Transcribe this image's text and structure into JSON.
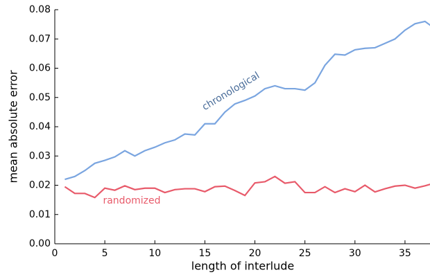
{
  "chart_data": {
    "type": "line",
    "x_label": "length of interlude",
    "y_label": "mean absolute error",
    "x": [
      1,
      2,
      3,
      4,
      5,
      6,
      7,
      8,
      9,
      10,
      11,
      12,
      13,
      14,
      15,
      16,
      17,
      18,
      19,
      20,
      21,
      22,
      23,
      24,
      25,
      26,
      27,
      28,
      29,
      30,
      31,
      32,
      33,
      34,
      35,
      36,
      37,
      38
    ],
    "series": [
      {
        "name": "chronological",
        "color": "#7aa5e0",
        "values": [
          0.022,
          0.023,
          0.025,
          0.0275,
          0.0285,
          0.0297,
          0.0318,
          0.03,
          0.0318,
          0.033,
          0.0345,
          0.0355,
          0.0375,
          0.0372,
          0.041,
          0.041,
          0.045,
          0.0478,
          0.049,
          0.0505,
          0.053,
          0.054,
          0.053,
          0.053,
          0.0525,
          0.055,
          0.061,
          0.0648,
          0.0645,
          0.0663,
          0.0668,
          0.067,
          0.0685,
          0.07,
          0.073,
          0.0752,
          0.076,
          0.0735
        ]
      },
      {
        "name": "randomized",
        "color": "#e85a6a",
        "values": [
          0.0195,
          0.0172,
          0.0172,
          0.0158,
          0.019,
          0.0183,
          0.0198,
          0.0185,
          0.019,
          0.019,
          0.0175,
          0.0185,
          0.0188,
          0.0188,
          0.0178,
          0.0195,
          0.0197,
          0.0182,
          0.0165,
          0.0208,
          0.0212,
          0.023,
          0.0207,
          0.0212,
          0.0175,
          0.0175,
          0.0195,
          0.0175,
          0.0188,
          0.0178,
          0.02,
          0.0177,
          0.0188,
          0.0197,
          0.02,
          0.019,
          0.0198,
          0.0208
        ]
      }
    ],
    "xlim": [
      0,
      37.5
    ],
    "xticks": [
      0,
      5,
      10,
      15,
      20,
      25,
      30,
      35
    ],
    "ylim": [
      0,
      0.08
    ],
    "yticks": [
      {
        "value": 0,
        "label": "0.00"
      },
      0.01,
      0.02,
      0.03,
      0.04,
      0.05,
      0.06,
      0.07,
      0.08
    ]
  }
}
